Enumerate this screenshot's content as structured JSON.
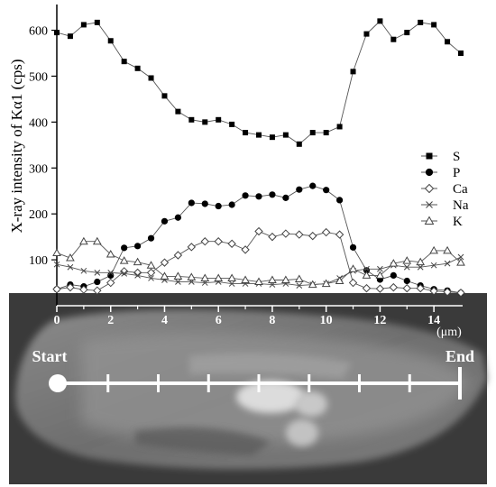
{
  "chart_data": {
    "type": "line",
    "ylabel": "X-ray intensity of Kα1 (cps)",
    "xlabel": "(μm)",
    "x_ticks": [
      "0",
      "2",
      "4",
      "6",
      "8",
      "10",
      "12",
      "14"
    ],
    "y_ticks": [
      "100",
      "200",
      "300",
      "400",
      "500",
      "600"
    ],
    "xlim": [
      0,
      15
    ],
    "ylim": [
      0,
      660
    ],
    "grid": false,
    "legend_position": "right",
    "x": [
      0,
      0.5,
      1,
      1.5,
      2,
      2.5,
      3,
      3.5,
      4,
      4.5,
      5,
      5.5,
      6,
      6.5,
      7,
      7.5,
      8,
      8.5,
      9,
      9.5,
      10,
      10.5,
      11,
      11.5,
      12,
      12.5,
      13,
      13.5,
      14,
      14.5,
      15
    ],
    "series": [
      {
        "name": "S",
        "marker": "square-filled",
        "values": [
          595,
          587,
          612,
          617,
          577,
          532,
          517,
          496,
          457,
          423,
          405,
          400,
          405,
          395,
          377,
          372,
          367,
          372,
          352,
          377,
          377,
          390,
          510,
          592,
          620,
          580,
          595,
          617,
          612,
          575,
          550
        ]
      },
      {
        "name": "P",
        "marker": "circle-filled",
        "values": [
          36,
          46,
          42,
          52,
          66,
          126,
          130,
          147,
          184,
          192,
          224,
          222,
          217,
          220,
          240,
          238,
          242,
          235,
          253,
          261,
          252,
          230,
          127,
          77,
          57,
          66,
          54,
          44,
          36,
          33,
          28
        ]
      },
      {
        "name": "Ca",
        "marker": "diamond-open",
        "values": [
          36,
          40,
          35,
          33,
          50,
          75,
          72,
          72,
          94,
          110,
          128,
          140,
          140,
          135,
          122,
          162,
          150,
          157,
          155,
          152,
          160,
          155,
          50,
          38,
          37,
          40,
          38,
          38,
          32,
          30,
          28
        ]
      },
      {
        "name": "Na",
        "marker": "cross",
        "values": [
          90,
          84,
          76,
          72,
          72,
          70,
          66,
          60,
          56,
          52,
          52,
          50,
          52,
          48,
          48,
          48,
          46,
          48,
          44,
          46,
          48,
          60,
          76,
          80,
          80,
          88,
          84,
          84,
          88,
          92,
          106
        ]
      },
      {
        "name": "K",
        "marker": "triangle-open",
        "values": [
          115,
          104,
          140,
          140,
          112,
          98,
          95,
          88,
          64,
          64,
          62,
          60,
          60,
          60,
          56,
          52,
          56,
          56,
          58,
          46,
          48,
          54,
          80,
          66,
          66,
          92,
          98,
          95,
          120,
          120,
          94
        ]
      }
    ]
  },
  "scan_line": {
    "start_label": "Start",
    "end_label": "End",
    "tick_count": 7
  },
  "colors": {
    "line": "#555555",
    "marker": "#000000",
    "axis": "#000000",
    "micrograph_bg": "#3a3a3a"
  }
}
